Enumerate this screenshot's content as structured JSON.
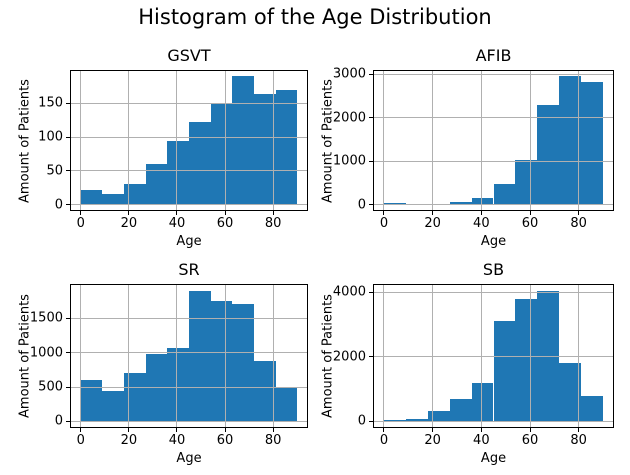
{
  "figure": {
    "title": "Histogram of the Age Distribution",
    "background": "#ffffff",
    "text_color": "#000000",
    "bar_color": "#1f77b4",
    "grid_color": "#b0b0b0",
    "spine_color": "#000000"
  },
  "chart_data": [
    {
      "type": "bar",
      "subtype": "histogram",
      "title": "GSVT",
      "xlabel": "Age",
      "ylabel": "Amount of Patients",
      "bin_edges": [
        0,
        9,
        18,
        27,
        36,
        45,
        54,
        63,
        72,
        81,
        90
      ],
      "values": [
        22,
        15,
        31,
        60,
        95,
        123,
        150,
        190,
        164,
        170
      ],
      "xticks": [
        0,
        20,
        40,
        60,
        80
      ],
      "yticks": [
        0,
        50,
        100,
        150
      ],
      "xlim": [
        -4.5,
        94.5
      ],
      "ylim": [
        -9.5,
        199.5
      ],
      "grid": true,
      "legend": false
    },
    {
      "type": "bar",
      "subtype": "histogram",
      "title": "AFIB",
      "xlabel": "Age",
      "ylabel": "Amount of Patients",
      "bin_edges": [
        0,
        9,
        18,
        27,
        36,
        45,
        54,
        63,
        72,
        81,
        90
      ],
      "values": [
        30,
        8,
        25,
        60,
        150,
        470,
        1020,
        2290,
        2950,
        2820
      ],
      "xticks": [
        0,
        20,
        40,
        60,
        80
      ],
      "yticks": [
        0,
        1000,
        2000,
        3000
      ],
      "xlim": [
        -4.5,
        94.5
      ],
      "ylim": [
        -147.5,
        3097.5
      ],
      "grid": true,
      "legend": false
    },
    {
      "type": "bar",
      "subtype": "histogram",
      "title": "SR",
      "xlabel": "Age",
      "ylabel": "Amount of Patients",
      "bin_edges": [
        0,
        9,
        18,
        27,
        36,
        45,
        54,
        63,
        72,
        81,
        90
      ],
      "values": [
        600,
        440,
        700,
        975,
        1070,
        1900,
        1750,
        1700,
        875,
        500
      ],
      "xticks": [
        0,
        20,
        40,
        60,
        80
      ],
      "yticks": [
        0,
        500,
        1000,
        1500
      ],
      "xlim": [
        -4.5,
        94.5
      ],
      "ylim": [
        -95,
        1995
      ],
      "grid": true,
      "legend": false
    },
    {
      "type": "bar",
      "subtype": "histogram",
      "title": "SB",
      "xlabel": "Age",
      "ylabel": "Amount of Patients",
      "bin_edges": [
        0,
        9,
        18,
        27,
        36,
        45,
        54,
        63,
        72,
        81,
        90
      ],
      "values": [
        30,
        80,
        330,
        680,
        1200,
        3120,
        3780,
        4050,
        1800,
        780
      ],
      "xticks": [
        0,
        20,
        40,
        60,
        80
      ],
      "yticks": [
        0,
        2000,
        4000
      ],
      "xlim": [
        -4.5,
        94.5
      ],
      "ylim": [
        -202.5,
        4252.5
      ],
      "grid": true,
      "legend": false
    }
  ]
}
